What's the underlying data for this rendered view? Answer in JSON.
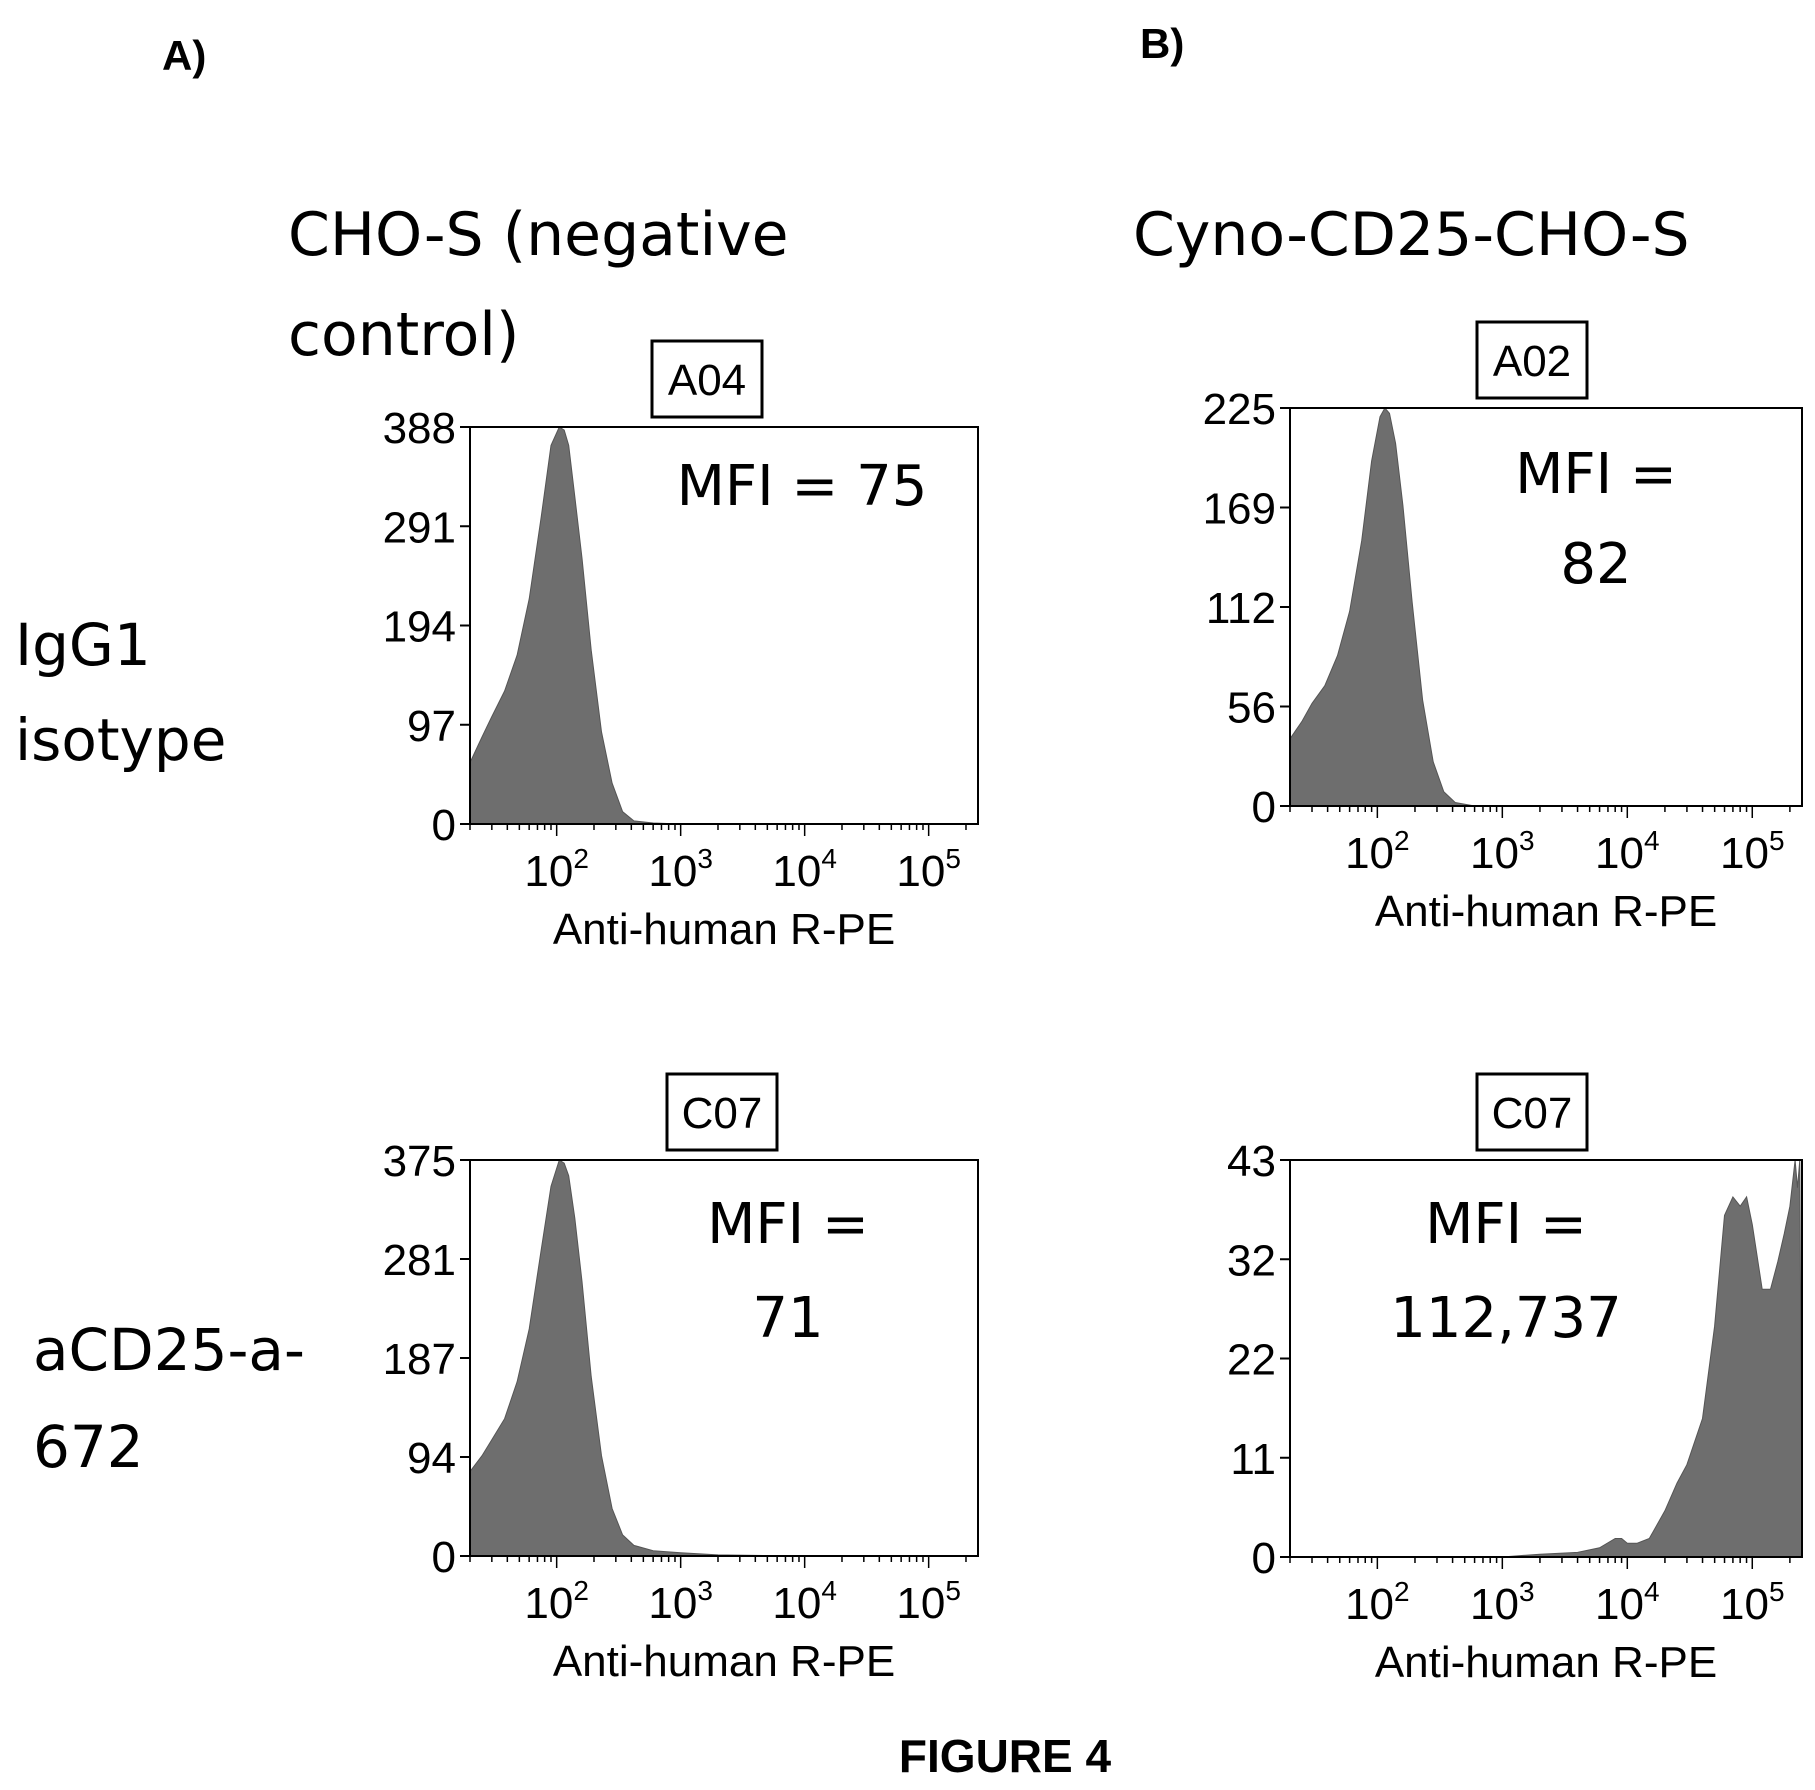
{
  "panel_labels": {
    "a": "A)",
    "b": "B)"
  },
  "column_titles": {
    "a_line1": "CHO-S (negative",
    "a_line2": "control)",
    "b": "Cyno-CD25-CHO-S"
  },
  "row_labels": {
    "r1_line1": "IgG1",
    "r1_line2": "isotype",
    "r2_line1": "aCD25-a-",
    "r2_line2": "672"
  },
  "figure_caption": "FIGURE 4",
  "colors": {
    "fill": "#6e6e6e",
    "stroke": "#000000",
    "text": "#000000"
  },
  "chart_data": [
    {
      "type": "area",
      "well": "A04",
      "mfi_line1": "MFI = 75",
      "mfi_line2": "",
      "xlabel": "Anti-human R-PE",
      "x_scale": "log",
      "xlim": [
        20,
        250000
      ],
      "ylim": [
        0,
        388
      ],
      "yticks": [
        "0",
        "97",
        "194",
        "291",
        "388"
      ],
      "xticks": [
        {
          "base": "10",
          "exp": "2"
        },
        {
          "base": "10",
          "exp": "3"
        },
        {
          "base": "10",
          "exp": "4"
        },
        {
          "base": "10",
          "exp": "5"
        }
      ],
      "x": [
        20,
        25,
        30,
        38,
        48,
        60,
        75,
        90,
        105,
        115,
        125,
        140,
        160,
        190,
        230,
        280,
        340,
        420,
        600,
        1000,
        10000,
        250000
      ],
      "y": [
        60,
        85,
        105,
        130,
        165,
        220,
        300,
        370,
        388,
        385,
        370,
        320,
        260,
        170,
        90,
        40,
        12,
        3,
        1,
        0,
        0,
        0
      ]
    },
    {
      "type": "area",
      "well": "A02",
      "mfi_line1": "MFI =",
      "mfi_line2": "82",
      "xlabel": "Anti-human R-PE",
      "x_scale": "log",
      "xlim": [
        20,
        250000
      ],
      "ylim": [
        0,
        225
      ],
      "yticks": [
        "0",
        "56",
        "112",
        "169",
        "225"
      ],
      "xticks": [
        {
          "base": "10",
          "exp": "2"
        },
        {
          "base": "10",
          "exp": "3"
        },
        {
          "base": "10",
          "exp": "4"
        },
        {
          "base": "10",
          "exp": "5"
        }
      ],
      "x": [
        20,
        25,
        30,
        38,
        48,
        60,
        75,
        90,
        105,
        115,
        125,
        140,
        160,
        190,
        230,
        280,
        340,
        420,
        600,
        1000,
        10000,
        250000
      ],
      "y": [
        38,
        48,
        58,
        68,
        85,
        110,
        150,
        195,
        220,
        225,
        222,
        205,
        170,
        115,
        60,
        25,
        8,
        2,
        0,
        0,
        0,
        0
      ]
    },
    {
      "type": "area",
      "well": "C07",
      "mfi_line1": "MFI =",
      "mfi_line2": "71",
      "xlabel": "Anti-human R-PE",
      "x_scale": "log",
      "xlim": [
        20,
        250000
      ],
      "ylim": [
        0,
        375
      ],
      "yticks": [
        "0",
        "94",
        "187",
        "281",
        "375"
      ],
      "xticks": [
        {
          "base": "10",
          "exp": "2"
        },
        {
          "base": "10",
          "exp": "3"
        },
        {
          "base": "10",
          "exp": "4"
        },
        {
          "base": "10",
          "exp": "5"
        }
      ],
      "x": [
        20,
        25,
        30,
        38,
        48,
        60,
        75,
        90,
        105,
        115,
        125,
        140,
        160,
        190,
        230,
        280,
        340,
        420,
        600,
        1000,
        2000,
        10000,
        250000
      ],
      "y": [
        80,
        95,
        110,
        130,
        165,
        215,
        290,
        350,
        375,
        372,
        360,
        320,
        260,
        170,
        95,
        45,
        20,
        10,
        5,
        3,
        1,
        0,
        0
      ]
    },
    {
      "type": "area",
      "well": "C07",
      "mfi_line1": "MFI =",
      "mfi_line2": "112,737",
      "xlabel": "Anti-human R-PE",
      "x_scale": "log",
      "xlim": [
        20,
        250000
      ],
      "ylim": [
        0,
        43
      ],
      "yticks": [
        "0",
        "11",
        "22",
        "32",
        "43"
      ],
      "xticks": [
        {
          "base": "10",
          "exp": "2"
        },
        {
          "base": "10",
          "exp": "3"
        },
        {
          "base": "10",
          "exp": "4"
        },
        {
          "base": "10",
          "exp": "5"
        }
      ],
      "x": [
        20,
        1000,
        2000,
        4000,
        6000,
        8000,
        9000,
        10000,
        12000,
        15000,
        20000,
        25000,
        30000,
        40000,
        50000,
        60000,
        70000,
        80000,
        90000,
        100000,
        120000,
        140000,
        160000,
        180000,
        200000,
        220000,
        230000,
        240000,
        250000
      ],
      "y": [
        0,
        0,
        0.3,
        0.5,
        1,
        2,
        2,
        1.5,
        1.5,
        2,
        5,
        8,
        10,
        15,
        25,
        37,
        39,
        38,
        39,
        36,
        29,
        29,
        32,
        35,
        38,
        43,
        40,
        43,
        0
      ]
    }
  ]
}
